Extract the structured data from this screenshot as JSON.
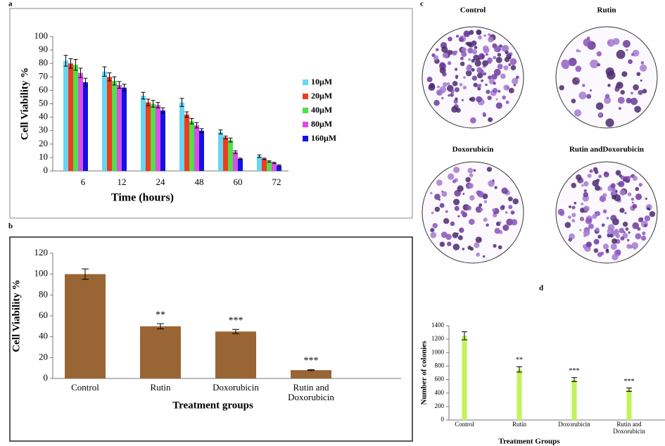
{
  "panel_labels": [
    "a",
    "b",
    "c",
    "d"
  ],
  "images": {
    "titles": [
      "Control",
      "Rutin",
      "Doxorubicin",
      "Rutin andDoxorubicin"
    ]
  },
  "chart_data": [
    {
      "type": "grouped_bar",
      "y_label": "Cell Viability %",
      "x_label": "Time (hours)",
      "categories": [
        "6",
        "12",
        "24",
        "48",
        "60",
        "72"
      ],
      "ylim": [
        0,
        100
      ],
      "yticks": [
        0,
        10,
        20,
        30,
        40,
        50,
        60,
        70,
        80,
        90,
        100
      ],
      "legend": "right",
      "series": [
        {
          "name": "10μM",
          "color": "#66d6f2",
          "values": [
            82,
            74,
            56,
            51,
            29,
            11
          ],
          "errors": [
            4,
            3.5,
            2.5,
            3,
            1.5,
            1
          ]
        },
        {
          "name": "20μM",
          "color": "#f03c1e",
          "values": [
            80,
            70,
            51,
            42,
            25,
            9
          ],
          "errors": [
            3.5,
            3,
            2.5,
            2,
            1,
            0.5
          ]
        },
        {
          "name": "40μM",
          "color": "#4fe04a",
          "values": [
            79,
            67,
            50,
            37,
            23,
            7
          ],
          "errors": [
            4,
            3,
            2.5,
            2,
            1.5,
            0.5
          ]
        },
        {
          "name": "80μM",
          "color": "#d94fe8",
          "values": [
            73,
            64,
            49,
            34,
            14,
            6
          ],
          "errors": [
            3.5,
            2.5,
            2,
            2,
            1,
            0.5
          ]
        },
        {
          "name": "160μM",
          "color": "#1212e8",
          "values": [
            66,
            62,
            45,
            30,
            9,
            4
          ],
          "errors": [
            3,
            2.5,
            2,
            1.5,
            0.5,
            0.5
          ]
        }
      ]
    },
    {
      "type": "bar",
      "y_label": "Cell Viability %",
      "x_label": "Treatment groups",
      "categories": [
        "Control",
        "Rutin",
        "Doxorubicin",
        "Rutin and Doxorubicin"
      ],
      "values": [
        100,
        50,
        45,
        8
      ],
      "errors": [
        5,
        2.5,
        2,
        0.5
      ],
      "annotations": [
        null,
        "**",
        "***",
        "***"
      ],
      "color": "#9a6534",
      "ylim": [
        0,
        120
      ],
      "yticks": [
        0,
        20,
        40,
        60,
        80,
        100,
        120
      ]
    },
    {
      "type": "bar",
      "y_label": "Number of colonies",
      "x_label": "Treatment Groups",
      "categories": [
        "Control",
        "Rutin",
        "Doxorubicin",
        "Rutin and Doxorubicin"
      ],
      "values": [
        1250,
        750,
        600,
        450
      ],
      "errors": [
        60,
        40,
        30,
        25
      ],
      "annotations": [
        null,
        "**",
        "***",
        "***"
      ],
      "color": "#c3f35a",
      "ylim": [
        0,
        1400
      ],
      "yticks": [
        0,
        200,
        400,
        600,
        800,
        1000,
        1200,
        1400
      ]
    }
  ]
}
